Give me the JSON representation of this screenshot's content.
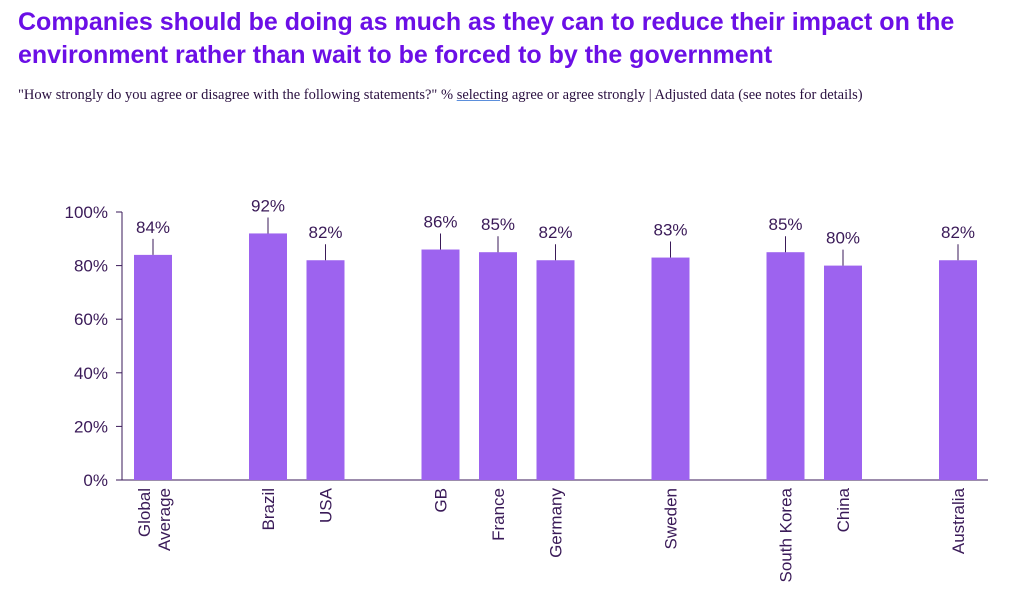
{
  "chart_data": {
    "type": "bar",
    "title": "Companies should be doing as much as they can to reduce their impact on the environment rather than wait to be forced to by the government",
    "subtitle_parts": [
      "\"How strongly do you agree or disagree with the following statements?\" % ",
      "selecting",
      " agree or agree strongly | Adjusted data (see notes for details)"
    ],
    "categories": [
      "Global Average",
      "",
      "Brazil",
      "USA",
      "",
      "GB",
      "France",
      "Germany",
      "",
      "Sweden",
      "",
      "South Korea",
      "China",
      "",
      "Australia"
    ],
    "values": [
      84,
      null,
      92,
      82,
      null,
      86,
      85,
      82,
      null,
      83,
      null,
      85,
      80,
      null,
      82
    ],
    "data_labels": [
      "84%",
      "",
      "92%",
      "82%",
      "",
      "86%",
      "85%",
      "82%",
      "",
      "83%",
      "",
      "85%",
      "80%",
      "",
      "82%"
    ],
    "yticks": [
      "0%",
      "20%",
      "40%",
      "60%",
      "80%",
      "100%"
    ],
    "ylim": [
      0,
      100
    ],
    "xlabel": "",
    "ylabel": "",
    "grid": false,
    "legend": "none",
    "colors": {
      "bar": "#9d63ef",
      "title": "#6b0fe6",
      "text": "#3a1a58"
    }
  }
}
